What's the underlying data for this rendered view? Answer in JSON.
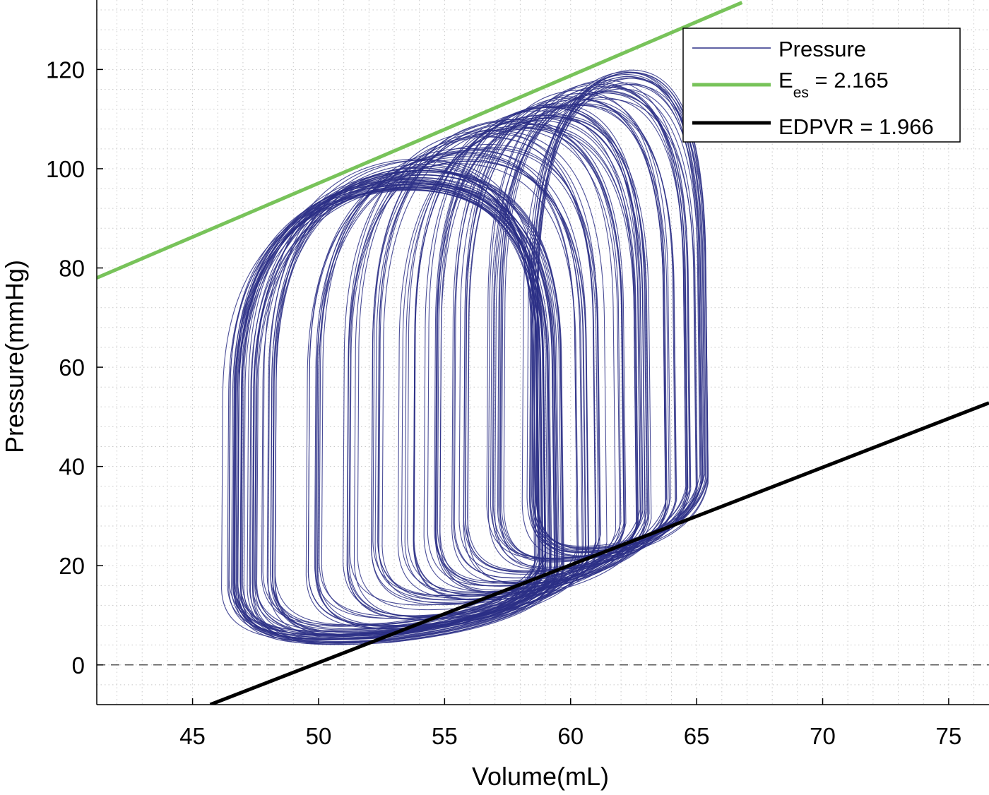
{
  "chart_data": {
    "type": "line",
    "xlabel": "Volume(mL)",
    "ylabel": "Pressure(mmHg)",
    "xlim": [
      41.2,
      76.6
    ],
    "ylim": [
      -8,
      134
    ],
    "xticks": [
      45,
      50,
      55,
      60,
      65,
      70,
      75
    ],
    "yticks": [
      0,
      20,
      40,
      60,
      80,
      100,
      120
    ],
    "x_tick_labels": [
      "45",
      "50",
      "55",
      "60",
      "65",
      "70",
      "75"
    ],
    "y_tick_labels": [
      "0",
      "20",
      "40",
      "60",
      "80",
      "100",
      "120"
    ],
    "grid": "minor dotted",
    "reference_line": {
      "y": 0,
      "style": "dashed"
    },
    "legend_position": "top-right",
    "legend": [
      {
        "label": "Pressure"
      },
      {
        "label": "E",
        "subscript": "es",
        "value_text": " = 2.165"
      },
      {
        "label": "EDPVR = 1.966"
      }
    ],
    "series": [
      {
        "name": "Pressure",
        "color": "#2b2f86",
        "loops": [
          {
            "v_min": 46.5,
            "v_max": 59.0,
            "p_min": 5,
            "p_max": 97,
            "count": 18
          },
          {
            "v_min": 47.2,
            "v_max": 59.5,
            "p_min": 5,
            "p_max": 98,
            "count": 16
          },
          {
            "v_min": 48.0,
            "v_max": 58.8,
            "p_min": 6,
            "p_max": 100,
            "count": 12
          },
          {
            "v_min": 49.8,
            "v_max": 60.5,
            "p_min": 8,
            "p_max": 103,
            "count": 10
          },
          {
            "v_min": 51.2,
            "v_max": 61.2,
            "p_min": 10,
            "p_max": 106,
            "count": 8
          },
          {
            "v_min": 52.2,
            "v_max": 62.0,
            "p_min": 12,
            "p_max": 108,
            "count": 8
          },
          {
            "v_min": 53.5,
            "v_max": 62.8,
            "p_min": 13,
            "p_max": 110,
            "count": 8
          },
          {
            "v_min": 54.5,
            "v_max": 63.0,
            "p_min": 15,
            "p_max": 112,
            "count": 10
          },
          {
            "v_min": 55.6,
            "v_max": 64.0,
            "p_min": 17,
            "p_max": 114,
            "count": 10
          },
          {
            "v_min": 57.0,
            "v_max": 64.8,
            "p_min": 20,
            "p_max": 116,
            "count": 12
          },
          {
            "v_min": 58.4,
            "v_max": 65.3,
            "p_min": 22,
            "p_max": 118,
            "count": 14
          }
        ]
      },
      {
        "name": "E_es",
        "color": "#78c35a",
        "slope": 2.165,
        "points": [
          [
            41.2,
            78.0
          ],
          [
            66.8,
            133.5
          ]
        ]
      },
      {
        "name": "EDPVR",
        "color": "#000000",
        "slope": 1.966,
        "points": [
          [
            45.7,
            -8.0
          ],
          [
            76.6,
            52.8
          ]
        ]
      }
    ]
  }
}
